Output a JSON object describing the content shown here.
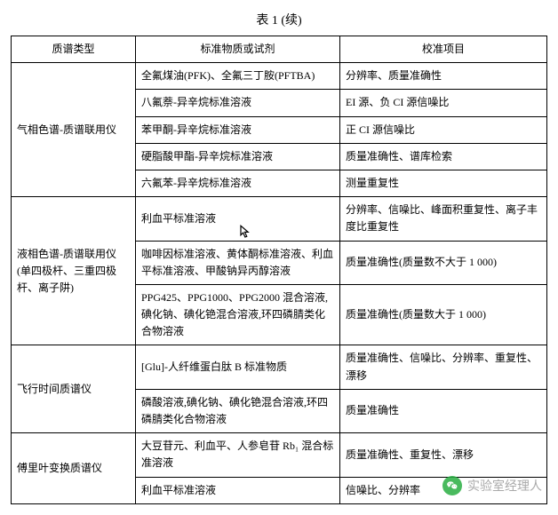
{
  "title": "表 1 (续)",
  "columns": [
    "质谱类型",
    "标准物质或试剂",
    "校准项目"
  ],
  "groups": [
    {
      "type": "气相色谱-质谱联用仪",
      "rows": [
        {
          "reagent": "全氟煤油(PFK)、全氟三丁胺(PFTBA)",
          "item": "分辨率、质量准确性"
        },
        {
          "reagent": "八氟萘-异辛烷标准溶液",
          "item": "EI 源、负 CI 源信噪比"
        },
        {
          "reagent": "苯甲酮-异辛烷标准溶液",
          "item": "正 CI 源信噪比"
        },
        {
          "reagent": "硬脂酸甲酯-异辛烷标准溶液",
          "item": "质量准确性、谱库检索"
        },
        {
          "reagent": "六氟苯-异辛烷标准溶液",
          "item": "测量重复性"
        }
      ]
    },
    {
      "type": "液相色谱-质谱联用仪(单四极杆、三重四极杆、离子阱)",
      "rows": [
        {
          "reagent": "利血平标准溶液",
          "item": "分辨率、信噪比、峰面积重复性、离子丰度比重复性"
        },
        {
          "reagent": "咖啡因标准溶液、黄体酮标准溶液、利血平标准溶液、甲酸钠异丙醇溶液",
          "item": "质量准确性(质量数不大于 1 000)"
        },
        {
          "reagent": "PPG425、PPG1000、PPG2000 混合溶液,碘化钠、碘化铯混合溶液,环四磷腈类化合物溶液",
          "item": "质量准确性(质量数大于 1 000)"
        }
      ]
    },
    {
      "type": "飞行时间质谱仪",
      "rows": [
        {
          "reagent": "[Glu]-人纤维蛋白肽 B 标准物质",
          "item": "质量准确性、信噪比、分辨率、重复性、漂移"
        },
        {
          "reagent": "磷酸溶液,碘化钠、碘化铯混合溶液,环四磷腈类化合物溶液",
          "item": "质量准确性"
        }
      ]
    },
    {
      "type": "傅里叶变换质谱仪",
      "rows": [
        {
          "reagent": "大豆苷元、利血平、人参皂苷 Rb₁ 混合标准溶液",
          "item": "质量准确性、重复性、漂移"
        },
        {
          "reagent": "利血平标准溶液",
          "item": "信噪比、分辨率"
        }
      ]
    }
  ],
  "watermark": "实验室经理人"
}
